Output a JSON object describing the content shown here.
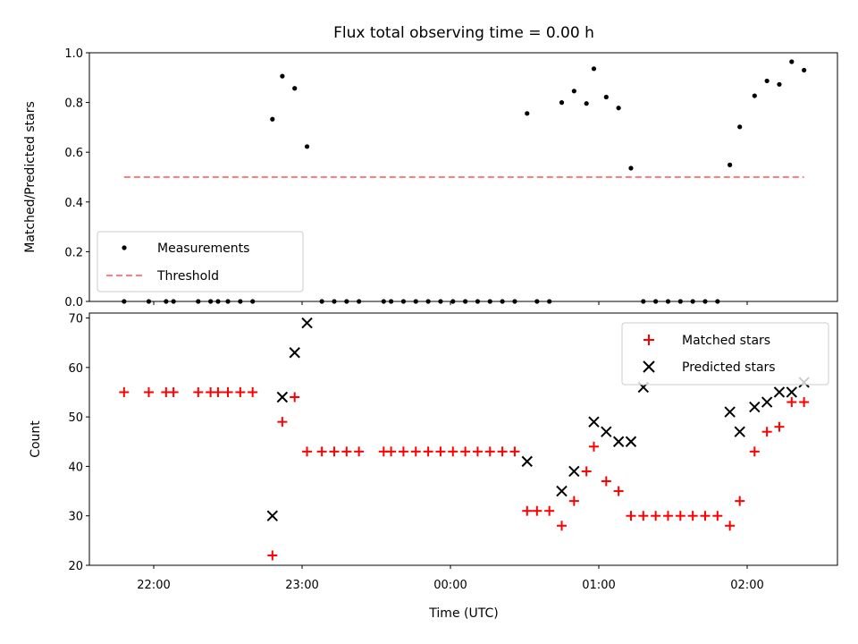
{
  "chart_data": [
    {
      "type": "scatter",
      "title": "Flux total observing time = 0.00 h",
      "ylabel": "Matched/Predicted stars",
      "xlabel": "",
      "ylim": [
        0,
        1.0
      ],
      "yticks": [
        0.0,
        0.2,
        0.4,
        0.6,
        0.8,
        1.0
      ],
      "ytick_labels": [
        "0.0",
        "0.2",
        "0.4",
        "0.6",
        "0.8",
        "1.0"
      ],
      "legend_position": "lower-left",
      "series": [
        {
          "name": "Measurements",
          "marker": "dot",
          "color": "#000000",
          "x": [
            "21:48",
            "21:58",
            "22:05",
            "22:08",
            "22:18",
            "22:23",
            "22:26",
            "22:30",
            "22:35",
            "22:40",
            "22:48",
            "22:52",
            "22:57",
            "23:02",
            "23:08",
            "23:13",
            "23:18",
            "23:23",
            "23:33",
            "23:36",
            "23:41",
            "23:46",
            "23:51",
            "23:56",
            "00:01",
            "00:06",
            "00:11",
            "00:16",
            "00:21",
            "00:26",
            "00:31",
            "00:35",
            "00:40",
            "00:45",
            "00:50",
            "00:55",
            "00:58",
            "01:03",
            "01:08",
            "01:13",
            "01:18",
            "01:23",
            "01:28",
            "01:33",
            "01:38",
            "01:43",
            "01:48",
            "01:53",
            "01:57",
            "02:03",
            "02:08",
            "02:13",
            "02:18",
            "02:23"
          ],
          "y": [
            0,
            0,
            0,
            0,
            0,
            0,
            0,
            0,
            0,
            0,
            0.733,
            0.906,
            0.857,
            0.623,
            0,
            0,
            0,
            0,
            0,
            0,
            0,
            0,
            0,
            0,
            0,
            0,
            0,
            0,
            0,
            0,
            0.756,
            0,
            0,
            0.8,
            0.846,
            0.796,
            0.936,
            0.822,
            0.778,
            0.536,
            0,
            0,
            0,
            0,
            0,
            0,
            0,
            0.549,
            0.702,
            0.827,
            0.887,
            0.873,
            0.964,
            0.93
          ]
        },
        {
          "name": "Threshold",
          "line_style": "dashed",
          "color": "#ff7f7f",
          "x": [
            "21:48",
            "02:23"
          ],
          "y": [
            0.5,
            0.5
          ]
        }
      ]
    },
    {
      "type": "scatter",
      "title": "",
      "xlabel": "Time (UTC)",
      "ylabel": "Count",
      "ylim": [
        20,
        71
      ],
      "yticks": [
        20,
        30,
        40,
        50,
        60,
        70
      ],
      "ytick_labels": [
        "20",
        "30",
        "40",
        "50",
        "60",
        "70"
      ],
      "xticks": [
        "22:00",
        "23:00",
        "00:00",
        "01:00",
        "02:00"
      ],
      "xtick_labels": [
        "22:00",
        "23:00",
        "00:00",
        "01:00",
        "02:00"
      ],
      "legend_position": "top-right",
      "series": [
        {
          "name": "Matched stars",
          "marker": "plus",
          "color": "#ff0000",
          "x": [
            "21:48",
            "21:58",
            "22:05",
            "22:08",
            "22:18",
            "22:23",
            "22:26",
            "22:30",
            "22:35",
            "22:40",
            "22:48",
            "22:52",
            "22:57",
            "23:02",
            "23:08",
            "23:13",
            "23:18",
            "23:23",
            "23:33",
            "23:36",
            "23:41",
            "23:46",
            "23:51",
            "23:56",
            "00:01",
            "00:06",
            "00:11",
            "00:16",
            "00:21",
            "00:26",
            "00:31",
            "00:35",
            "00:40",
            "00:45",
            "00:50",
            "00:55",
            "00:58",
            "01:03",
            "01:08",
            "01:13",
            "01:18",
            "01:23",
            "01:28",
            "01:33",
            "01:38",
            "01:43",
            "01:48",
            "01:53",
            "01:57",
            "02:03",
            "02:08",
            "02:13",
            "02:18",
            "02:23"
          ],
          "y": [
            55,
            55,
            55,
            55,
            55,
            55,
            55,
            55,
            55,
            55,
            22,
            49,
            54,
            43,
            43,
            43,
            43,
            43,
            43,
            43,
            43,
            43,
            43,
            43,
            43,
            43,
            43,
            43,
            43,
            43,
            31,
            31,
            31,
            28,
            33,
            39,
            44,
            37,
            35,
            30,
            30,
            30,
            30,
            30,
            30,
            30,
            30,
            28,
            33,
            43,
            47,
            48,
            53,
            53
          ]
        },
        {
          "name": "Predicted stars",
          "marker": "x",
          "color": "#000000",
          "x": [
            "22:48",
            "22:52",
            "22:57",
            "23:02",
            "00:31",
            "00:45",
            "00:50",
            "00:58",
            "01:03",
            "01:08",
            "01:13",
            "01:18",
            "01:53",
            "01:57",
            "02:03",
            "02:08",
            "02:13",
            "02:18",
            "02:23"
          ],
          "y": [
            30,
            54,
            63,
            69,
            41,
            35,
            39,
            49,
            47,
            45,
            45,
            56,
            51,
            47,
            52,
            53,
            55,
            55,
            57
          ]
        }
      ]
    }
  ]
}
